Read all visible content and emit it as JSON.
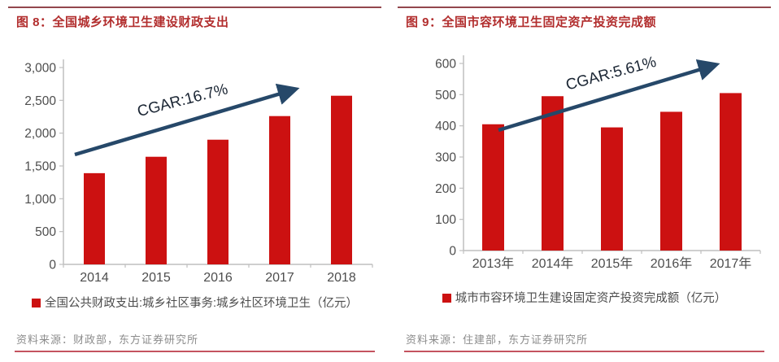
{
  "colors": {
    "title_red": "#B22E2E",
    "top_divider": "#93474D",
    "bottom_divider": "#C4535F",
    "axis_text": "#4D4D4D",
    "axis_line": "#BFBFBF",
    "legend_text": "#4D4D4D",
    "source_text": "#8C8C8C",
    "annotation_text": "#1A2533",
    "bar_red": "#CC1111",
    "arrow_navy": "#264869"
  },
  "chart_data": [
    {
      "type": "bar",
      "title": "图 8：全国城乡环境卫生建设财政支出",
      "categories": [
        "2014",
        "2015",
        "2016",
        "2017",
        "2018"
      ],
      "values": [
        1390,
        1640,
        1900,
        2260,
        2570
      ],
      "ylim": [
        0,
        3000
      ],
      "ytick_labels": [
        "0",
        "500",
        "1,000",
        "1,500",
        "2,000",
        "2,500",
        "3,000"
      ],
      "grid": false,
      "legend_position": "bottom",
      "legend": "全国公共财政支出:城乡社区事务:城乡社区环境卫生（亿元）",
      "annotation": "CGAR:16.7%",
      "source": "资料来源：财政部，东方证券研究所",
      "bar_color": "#CC1111",
      "arrow_color": "#264869"
    },
    {
      "type": "bar",
      "title": "图 9：全国市容环境卫生固定资产投资完成额",
      "categories": [
        "2013年",
        "2014年",
        "2015年",
        "2016年",
        "2017年"
      ],
      "values": [
        405,
        495,
        395,
        445,
        505
      ],
      "ylim": [
        0,
        600
      ],
      "ytick_labels": [
        "0",
        "100",
        "200",
        "300",
        "400",
        "500",
        "600"
      ],
      "grid": false,
      "legend_position": "bottom",
      "legend": "城市市容环境卫生建设固定资产投资完成额（亿元）",
      "annotation": "CGAR:5.61%",
      "source": "资料来源：住建部，东方证券研究所",
      "bar_color": "#CC1111",
      "arrow_color": "#264869"
    }
  ]
}
